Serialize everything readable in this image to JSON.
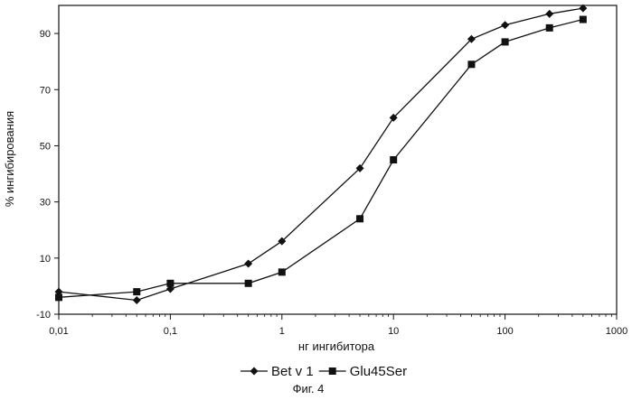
{
  "chart_data": {
    "type": "line",
    "title": "",
    "xlabel": "нг ингибитора",
    "ylabel": "% ингибирования",
    "x_scale": "log",
    "xlim": [
      0.01,
      1000
    ],
    "ylim": [
      -10,
      100
    ],
    "x_ticks": [
      "0,01",
      "0,1",
      "1",
      "10",
      "100",
      "1000"
    ],
    "y_ticks": [
      "-10",
      "10",
      "30",
      "50",
      "70",
      "90"
    ],
    "grid": false,
    "legend_position": "bottom",
    "series": [
      {
        "name": "Bet v 1",
        "marker": "diamond",
        "x": [
          0.01,
          0.05,
          0.1,
          0.5,
          1,
          5,
          10,
          50,
          100,
          250,
          500
        ],
        "y": [
          -2,
          -5,
          -1,
          8,
          16,
          42,
          60,
          88,
          93,
          97,
          99
        ]
      },
      {
        "name": "Glu45Ser",
        "marker": "square",
        "x": [
          0.01,
          0.05,
          0.1,
          0.5,
          1,
          5,
          10,
          50,
          100,
          250,
          500
        ],
        "y": [
          -4,
          -2,
          1,
          1,
          5,
          24,
          45,
          79,
          87,
          92,
          95
        ]
      }
    ]
  },
  "caption": "Фиг. 4",
  "colors": {
    "line": "#111111",
    "axis": "#111111"
  }
}
